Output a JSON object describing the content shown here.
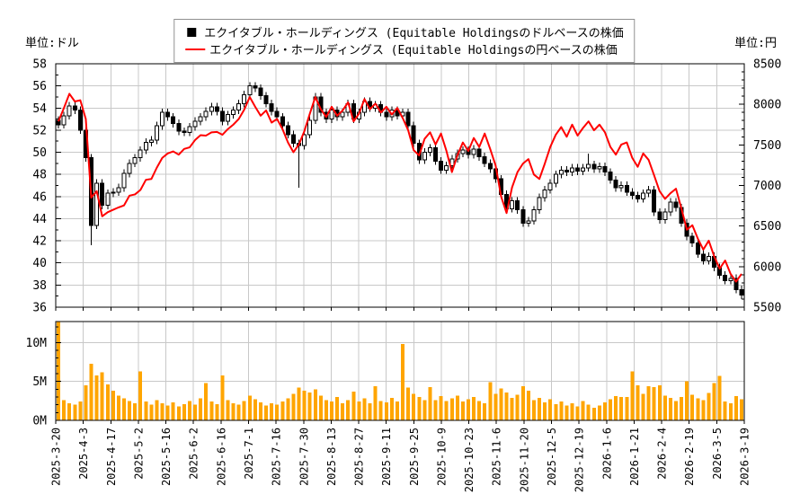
{
  "units": {
    "left": "単位:ドル",
    "right": "単位:円"
  },
  "legend": [
    {
      "marker": "square",
      "color": "#000000",
      "label": "エクイタブル・ホールディングス (Equitable Holdingsのドルベースの株価"
    },
    {
      "marker": "line",
      "color": "#ff0000",
      "label": "エクイタブル・ホールディングス (Equitable Holdingsの円ベースの株価"
    }
  ],
  "colors": {
    "candle_border": "#000000",
    "candle_up_fill": "#ffffff",
    "candle_down_fill": "#000000",
    "jpy_line": "#ff0000",
    "volume_bar": "#ffa500",
    "grid": "#c8c8c8",
    "axis": "#000000",
    "background": "#ffffff",
    "legend_border": "#909090",
    "text": "#000000"
  },
  "chart_data": [
    {
      "type": "candlestick+line",
      "title": "",
      "grid": true,
      "x_tick_labels": [
        "2025-3-20",
        "2025-4-3",
        "2025-4-17",
        "2025-5-2",
        "2025-5-16",
        "2025-6-2",
        "2025-6-16",
        "2025-7-1",
        "2025-7-16",
        "2025-7-30",
        "2025-8-13",
        "2025-8-27",
        "2025-9-11",
        "2025-9-25",
        "2025-10-9",
        "2025-10-23",
        "2025-11-6",
        "2025-11-20",
        "2025-12-5",
        "2025-12-19",
        "2026-1-6",
        "2026-1-21",
        "2026-2-4",
        "2026-2-19",
        "2026-3-5",
        "2026-3-19"
      ],
      "points_per_label": 5,
      "left_axis": {
        "unit": "単位:ドル",
        "min": 36,
        "max": 58,
        "tick_step": 2,
        "minor_step": 1
      },
      "right_axis": {
        "unit": "単位:円",
        "min": 5500,
        "max": 8500,
        "tick_step": 500,
        "minor_step": 100
      },
      "open_rule": "previous_close",
      "wick_spread": 0.35,
      "series": [
        {
          "name": "エクイタブル・ホールディングス (Equitable Holdingsのドルベースの株価",
          "type": "candlestick",
          "axis": "left",
          "close": [
            52.5,
            53.3,
            54.2,
            53.8,
            52.0,
            49.5,
            43.4,
            47.2,
            45.2,
            46.3,
            46.4,
            46.8,
            48.1,
            49.0,
            49.5,
            50.2,
            50.9,
            51.1,
            52.4,
            53.6,
            53.2,
            52.6,
            51.9,
            51.8,
            52.3,
            52.8,
            53.2,
            53.7,
            54.1,
            53.7,
            52.8,
            53.4,
            53.8,
            54.4,
            55.2,
            56.0,
            55.8,
            55.1,
            54.4,
            53.7,
            53.2,
            52.4,
            51.6,
            50.8,
            50.6,
            51.6,
            52.9,
            55.0,
            53.6,
            53.0,
            53.8,
            53.2,
            53.6,
            54.4,
            53.0,
            53.6,
            54.6,
            54.0,
            54.3,
            53.6,
            53.2,
            53.8,
            53.3,
            53.6,
            52.4,
            50.8,
            49.3,
            50.0,
            50.4,
            49.2,
            48.4,
            48.8,
            49.4,
            49.9,
            50.2,
            49.8,
            50.3,
            49.6,
            49.0,
            48.5,
            47.6,
            46.2,
            44.9,
            45.6,
            44.8,
            43.6,
            43.8,
            44.8,
            45.9,
            46.6,
            47.2,
            48.0,
            48.4,
            48.2,
            48.6,
            48.3,
            48.6,
            48.9,
            48.5,
            48.7,
            48.2,
            47.5,
            46.8,
            47.0,
            46.4,
            46.1,
            45.8,
            46.3,
            46.6,
            44.6,
            43.9,
            44.6,
            45.5,
            45.0,
            43.6,
            42.4,
            41.8,
            40.8,
            40.2,
            40.6,
            39.6,
            38.9,
            38.4,
            38.6,
            37.6,
            37.1
          ],
          "special_wicks": [
            {
              "i": 6,
              "low": 41.6
            },
            {
              "i": 44,
              "low": 46.8
            },
            {
              "i": 97,
              "high": 49.9
            }
          ]
        },
        {
          "name": "エクイタブル・ホールディングス (Equitable Holdingsの円ベースの株価",
          "type": "line",
          "axis": "right",
          "values": [
            7790,
            7955,
            8130,
            8035,
            8050,
            7820,
            6850,
            6930,
            6620,
            6670,
            6700,
            6730,
            6755,
            6875,
            6890,
            6945,
            7070,
            7080,
            7220,
            7340,
            7395,
            7420,
            7380,
            7450,
            7470,
            7560,
            7620,
            7615,
            7655,
            7660,
            7625,
            7695,
            7750,
            7820,
            7935,
            8090,
            7970,
            7860,
            7925,
            7775,
            7820,
            7695,
            7530,
            7410,
            7505,
            7670,
            7885,
            8090,
            7940,
            7845,
            7970,
            7860,
            7925,
            8025,
            7790,
            7885,
            8065,
            7940,
            8010,
            7900,
            7970,
            7875,
            7955,
            7830,
            7680,
            7435,
            7370,
            7575,
            7655,
            7505,
            7640,
            7425,
            7165,
            7370,
            7530,
            7425,
            7585,
            7475,
            7640,
            7450,
            7245,
            6865,
            6660,
            6975,
            7165,
            7270,
            7325,
            7135,
            7080,
            7270,
            7475,
            7625,
            7720,
            7600,
            7750,
            7615,
            7710,
            7790,
            7680,
            7750,
            7655,
            7475,
            7380,
            7505,
            7530,
            7340,
            7230,
            7395,
            7315,
            7125,
            6930,
            6835,
            6905,
            6960,
            6715,
            6455,
            6510,
            6345,
            6210,
            6320,
            6125,
            5975,
            6075,
            5910,
            5815,
            5910
          ]
        }
      ]
    },
    {
      "type": "bar",
      "title": "",
      "grid": true,
      "ylabel": "",
      "ylim": [
        0,
        12.7
      ],
      "y_ticks": [
        0,
        5,
        10
      ],
      "y_tick_labels": [
        "0M",
        "5M",
        "10M"
      ],
      "minor_step": 1,
      "values": [
        13.0,
        2.6,
        2.2,
        2.0,
        2.4,
        4.5,
        7.3,
        5.8,
        6.2,
        4.6,
        3.8,
        3.2,
        2.8,
        2.5,
        2.2,
        6.3,
        2.4,
        2.0,
        2.6,
        2.2,
        1.9,
        2.3,
        1.8,
        2.1,
        2.5,
        2.0,
        2.8,
        4.8,
        2.4,
        2.1,
        5.8,
        2.6,
        2.2,
        2.0,
        2.5,
        3.2,
        2.7,
        2.3,
        1.9,
        2.2,
        2.0,
        2.4,
        2.8,
        3.4,
        4.2,
        3.8,
        3.6,
        4.0,
        3.2,
        2.6,
        2.4,
        3.0,
        2.2,
        2.6,
        3.7,
        2.4,
        2.8,
        2.2,
        4.4,
        2.5,
        2.3,
        2.9,
        2.4,
        9.8,
        4.2,
        3.4,
        3.0,
        2.6,
        4.3,
        2.6,
        3.1,
        2.5,
        2.8,
        3.2,
        2.4,
        2.7,
        3.0,
        2.5,
        2.2,
        4.9,
        3.4,
        4.1,
        3.6,
        2.9,
        3.3,
        4.4,
        3.8,
        2.6,
        2.9,
        2.3,
        2.7,
        2.1,
        2.4,
        1.9,
        2.2,
        1.8,
        2.5,
        2.0,
        1.6,
        1.9,
        2.3,
        2.7,
        3.1,
        3.0,
        3.0,
        6.3,
        4.5,
        3.4,
        4.4,
        4.3,
        4.5,
        3.2,
        2.9,
        2.5,
        3.0,
        5.0,
        3.3,
        2.8,
        2.6,
        3.5,
        4.8,
        5.7,
        2.4,
        2.2,
        3.1,
        2.7
      ]
    }
  ]
}
